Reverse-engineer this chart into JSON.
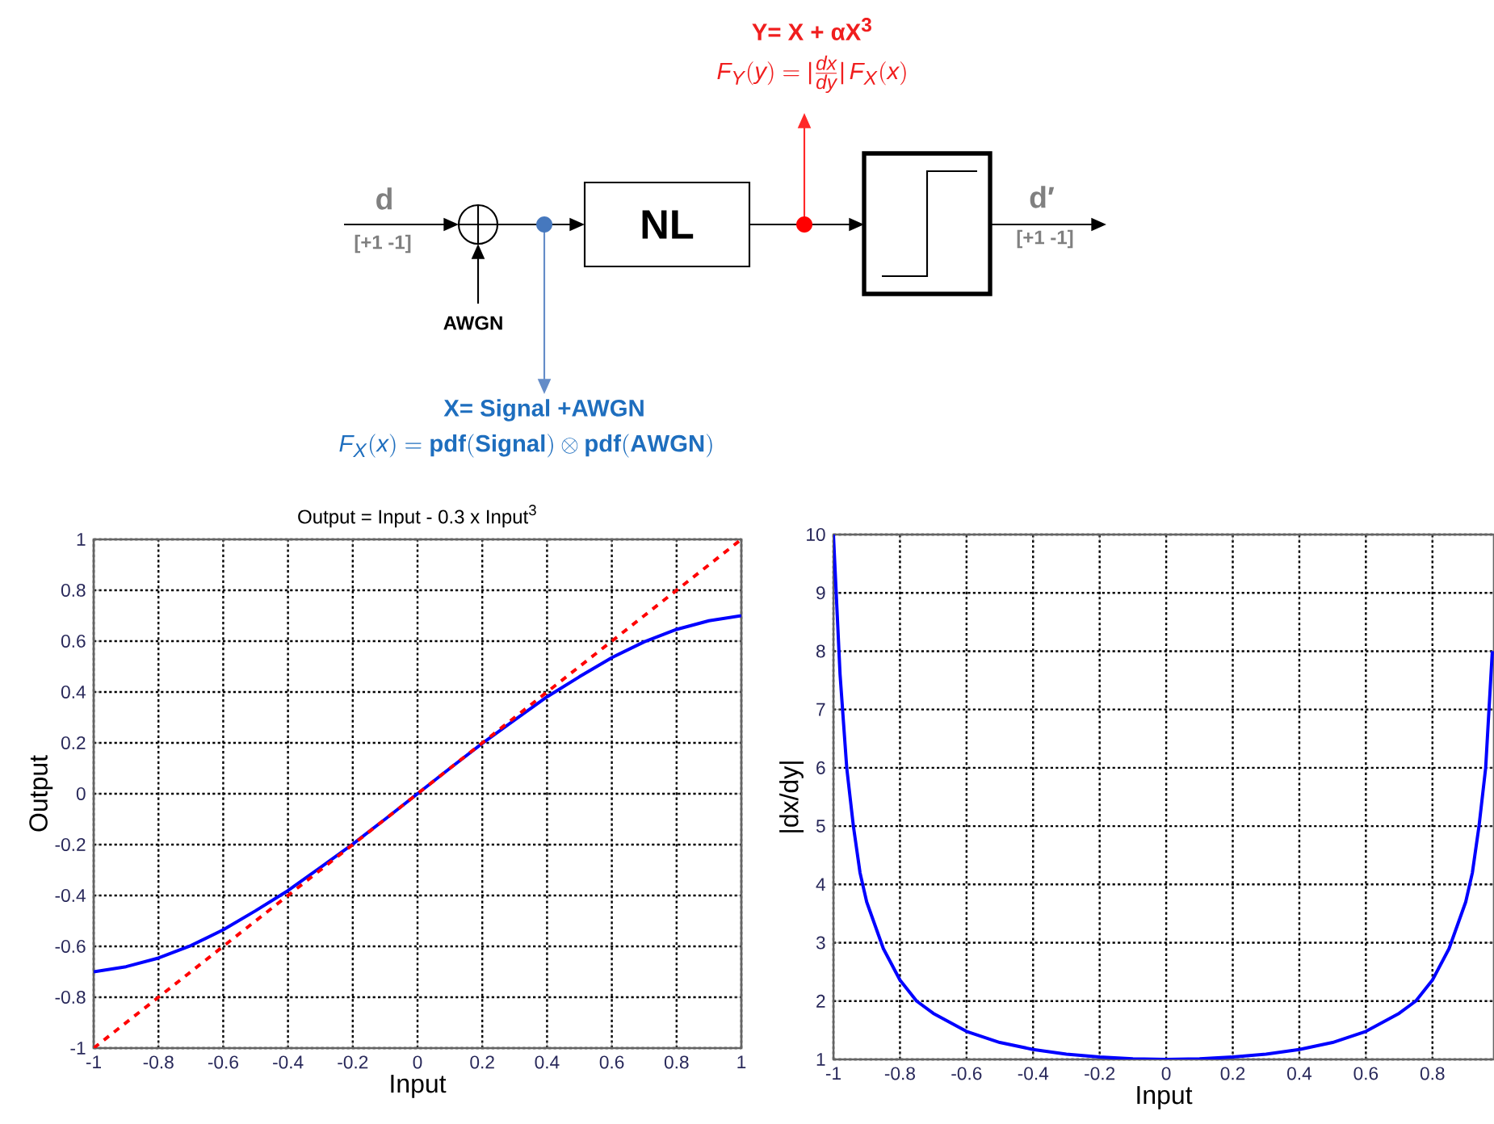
{
  "chart_data": [
    {
      "type": "other",
      "annotations": [
        "d",
        "[+1  -1]",
        "AWGN",
        "NL",
        "d′",
        "[+1  -1]",
        "Y= X + αX$^{3}$",
        "F_Y(y) = |\\frac{dx}{dy}|\\, F_X(x)",
        "X= Signal +AWGN",
        "F_X(x) = \\mathbf{pdf(Signal)} \\otimes \\mathbf{pdf(AWGN)}"
      ]
    },
    {
      "type": "line",
      "title": "Output = Input - 0.3 x Input$^{3}$",
      "xlabel": "Input",
      "ylabel": "Output",
      "xlim": [
        -1,
        1
      ],
      "ylim": [
        -1,
        1
      ],
      "xticks": [
        -1,
        -0.8,
        -0.6,
        -0.4,
        -0.2,
        0,
        0.2,
        0.4,
        0.6,
        0.8,
        1
      ],
      "yticks": [
        -1,
        -0.8,
        -0.6,
        -0.4,
        -0.2,
        0,
        0.2,
        0.4,
        0.6,
        0.8,
        1
      ],
      "grid": true,
      "marker": "none",
      "series": [
        {
          "color": "#0000ff",
          "line_style": "solid",
          "x": [
            -1,
            -0.9,
            -0.8,
            -0.7,
            -0.6,
            -0.5,
            -0.4,
            -0.3,
            -0.2,
            -0.1,
            0,
            0.1,
            0.2,
            0.3,
            0.4,
            0.5,
            0.6,
            0.7,
            0.8,
            0.9,
            1
          ],
          "values": [
            -0.7,
            -0.68,
            -0.646,
            -0.597,
            -0.535,
            -0.46,
            -0.381,
            -0.29,
            -0.198,
            -0.1,
            0,
            0.1,
            0.198,
            0.29,
            0.381,
            0.46,
            0.535,
            0.597,
            0.646,
            0.68,
            0.7
          ]
        },
        {
          "color": "#ff0000",
          "line_style": "dashed",
          "x": [
            -1,
            1
          ],
          "values": [
            -1,
            1
          ]
        }
      ]
    },
    {
      "type": "line",
      "xlabel": "Input",
      "ylabel": "|dx/dy|",
      "xlim": [
        -1,
        0.985
      ],
      "ylim": [
        1,
        10
      ],
      "xticks": [
        -1,
        -0.8,
        -0.6,
        -0.4,
        -0.2,
        0,
        0.2,
        0.4,
        0.6,
        0.8
      ],
      "yticks": [
        1,
        2,
        3,
        4,
        5,
        6,
        7,
        8,
        9,
        10
      ],
      "grid": true,
      "marker": "none",
      "series": [
        {
          "color": "#0000ff",
          "line_style": "solid",
          "x": [
            -1,
            -0.98,
            -0.96,
            -0.94,
            -0.92,
            -0.9,
            -0.85,
            -0.8,
            -0.75,
            -0.7,
            -0.6,
            -0.5,
            -0.4,
            -0.3,
            -0.2,
            -0.1,
            0,
            0.1,
            0.2,
            0.3,
            0.4,
            0.5,
            0.6,
            0.7,
            0.75,
            0.8,
            0.85,
            0.9,
            0.92,
            0.94,
            0.96,
            0.98
          ],
          "values": [
            10,
            7.6,
            6.0,
            5.0,
            4.2,
            3.7,
            2.9,
            2.36,
            2.0,
            1.79,
            1.48,
            1.29,
            1.17,
            1.09,
            1.04,
            1.01,
            1.0,
            1.01,
            1.04,
            1.09,
            1.17,
            1.29,
            1.48,
            1.79,
            2.0,
            2.36,
            2.9,
            3.7,
            4.2,
            5.0,
            6.0,
            8.0
          ]
        }
      ]
    }
  ]
}
